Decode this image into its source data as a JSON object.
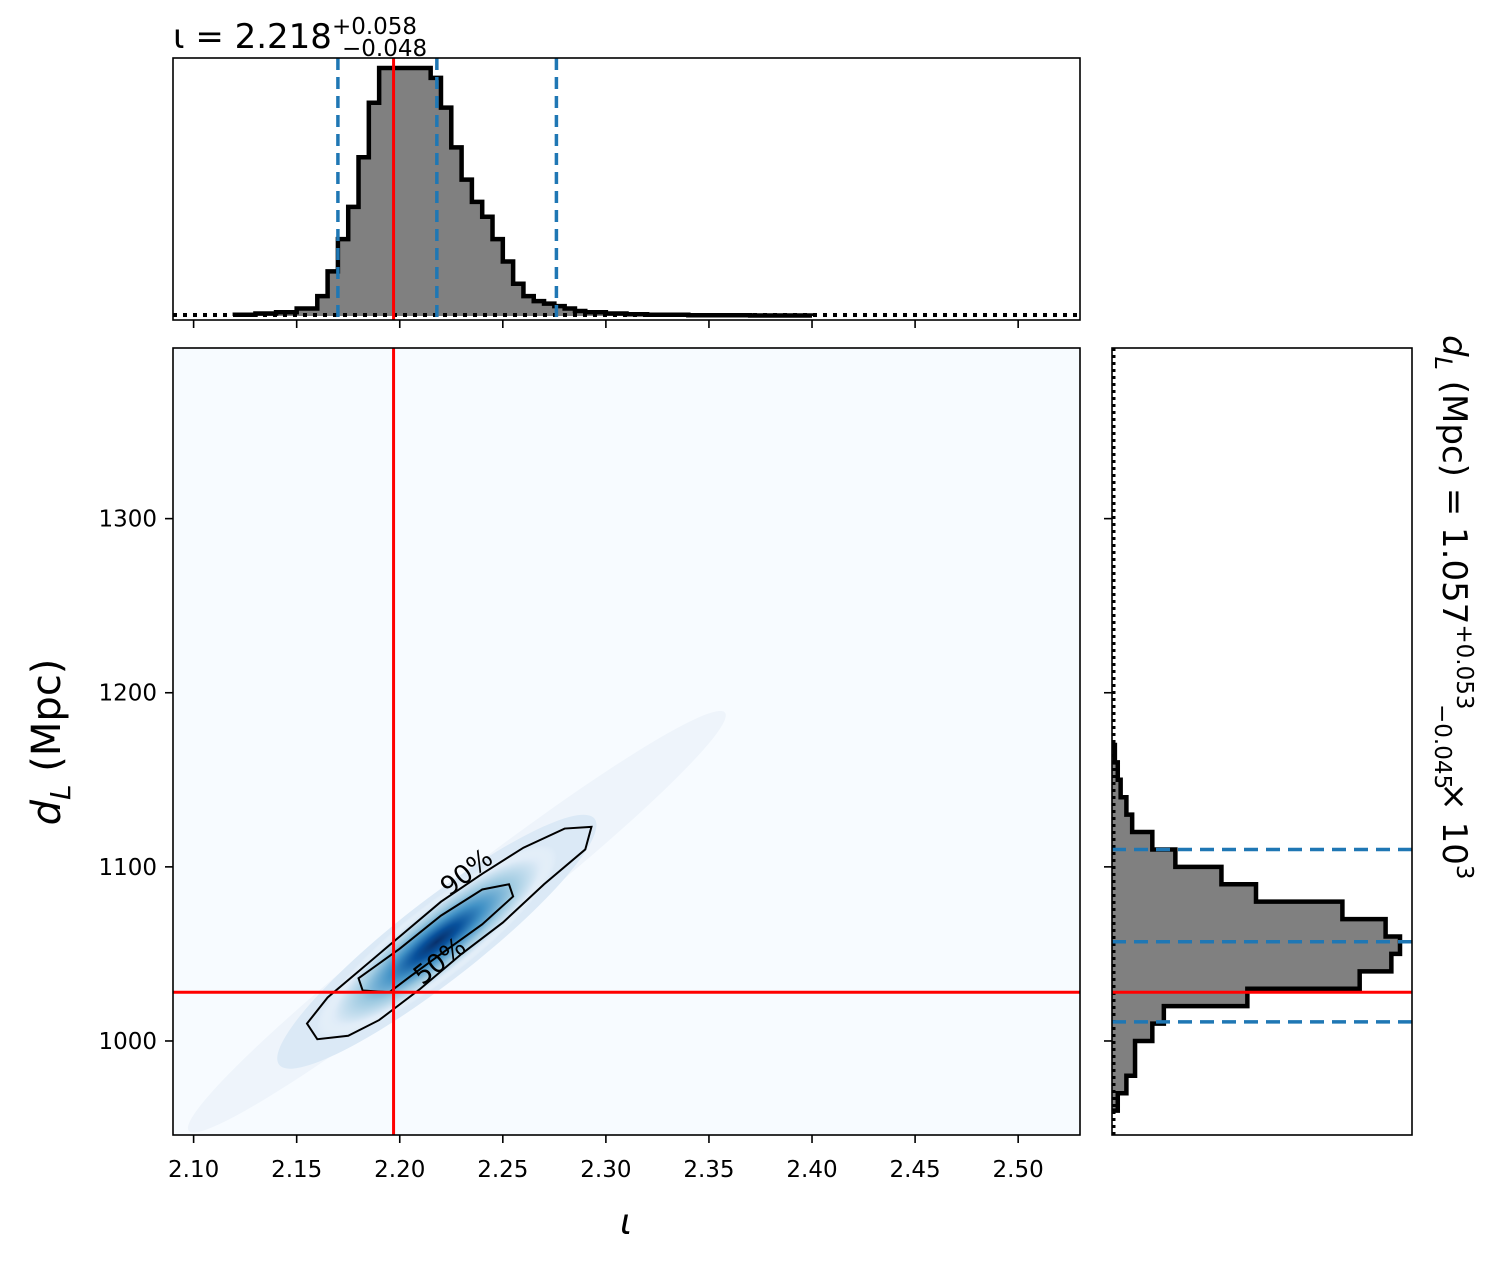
{
  "chart_data": [
    {
      "type": "histogram",
      "panel": "top-marginal",
      "parameter": "iota",
      "title": {
        "base": "ι = 2.218",
        "sup": "+0.058",
        "sub": "−0.048"
      },
      "xlim": [
        2.09,
        2.53
      ],
      "xticks": [
        2.1,
        2.15,
        2.2,
        2.25,
        2.3,
        2.35,
        2.4,
        2.45,
        2.5
      ],
      "bin_edges": [
        2.12,
        2.13,
        2.14,
        2.15,
        2.16,
        2.165,
        2.17,
        2.175,
        2.18,
        2.185,
        2.19,
        2.195,
        2.2,
        2.205,
        2.21,
        2.215,
        2.22,
        2.225,
        2.23,
        2.235,
        2.24,
        2.245,
        2.25,
        2.255,
        2.26,
        2.265,
        2.27,
        2.275,
        2.28,
        2.285,
        2.29,
        2.295,
        2.3,
        2.31,
        2.32,
        2.34,
        2.37,
        2.4
      ],
      "density": [
        0.005,
        0.01,
        0.015,
        0.03,
        0.08,
        0.18,
        0.31,
        0.44,
        0.64,
        0.86,
        1.0,
        1.0,
        1.0,
        1.0,
        1.0,
        0.96,
        0.84,
        0.68,
        0.55,
        0.46,
        0.4,
        0.31,
        0.22,
        0.13,
        0.08,
        0.06,
        0.05,
        0.04,
        0.03,
        0.02,
        0.015,
        0.015,
        0.01,
        0.007,
        0.005,
        0.003,
        0.002
      ],
      "lines": {
        "truth": 2.197,
        "median": 2.218,
        "lower": 2.17,
        "upper": 2.276
      },
      "prior": "dotted near zero"
    },
    {
      "type": "heatmap",
      "panel": "joint",
      "x_param": "iota",
      "y_param": "d_L",
      "xlabel": "ι",
      "ylabel": "d",
      "ylabel_sub": "L",
      "ylabel_unit": " (Mpc)",
      "xlim": [
        2.09,
        2.53
      ],
      "ylim": [
        946,
        1398
      ],
      "xticks": [
        2.1,
        2.15,
        2.2,
        2.25,
        2.3,
        2.35,
        2.4,
        2.45,
        2.5
      ],
      "yticks": [
        1000,
        1100,
        1200,
        1300
      ],
      "colormap": "Blues",
      "density_center": [
        2.218,
        1057
      ],
      "contours": [
        {
          "label": "90%",
          "points": [
            [
              2.16,
              1001
            ],
            [
              2.155,
              1010
            ],
            [
              2.165,
              1025
            ],
            [
              2.18,
              1040
            ],
            [
              2.2,
              1060
            ],
            [
              2.22,
              1080
            ],
            [
              2.24,
              1096
            ],
            [
              2.26,
              1111
            ],
            [
              2.28,
              1122
            ],
            [
              2.293,
              1123
            ],
            [
              2.29,
              1110
            ],
            [
              2.27,
              1090
            ],
            [
              2.25,
              1068
            ],
            [
              2.23,
              1050
            ],
            [
              2.21,
              1030
            ],
            [
              2.19,
              1012
            ],
            [
              2.175,
              1003
            ]
          ]
        },
        {
          "label": "50%",
          "points": [
            [
              2.182,
              1029
            ],
            [
              2.18,
              1036
            ],
            [
              2.2,
              1053
            ],
            [
              2.22,
              1072
            ],
            [
              2.24,
              1087
            ],
            [
              2.253,
              1090
            ],
            [
              2.255,
              1083
            ],
            [
              2.24,
              1067
            ],
            [
              2.22,
              1050
            ],
            [
              2.205,
              1037
            ],
            [
              2.195,
              1028
            ]
          ]
        }
      ],
      "truth": {
        "x": 2.197,
        "y": 1028
      }
    },
    {
      "type": "histogram",
      "panel": "right-marginal",
      "orientation": "horizontal",
      "parameter": "d_L",
      "title": {
        "base": "d",
        "base_sub": "L",
        "rest": " (Mpc) = 1.057",
        "sup": "+0.053",
        "sub": "−0.045",
        "tail": " × 10",
        "exp": "3"
      },
      "ylim": [
        946,
        1398
      ],
      "bin_edges": [
        960,
        970,
        980,
        990,
        1000,
        1010,
        1020,
        1030,
        1040,
        1050,
        1060,
        1070,
        1080,
        1090,
        1100,
        1110,
        1120,
        1130,
        1140,
        1150,
        1160,
        1170
      ],
      "density": [
        0.02,
        0.05,
        0.08,
        0.08,
        0.14,
        0.18,
        0.47,
        0.86,
        0.97,
        1.0,
        0.95,
        0.8,
        0.5,
        0.38,
        0.22,
        0.14,
        0.07,
        0.05,
        0.03,
        0.02,
        0.01
      ],
      "lines": {
        "truth": 1028,
        "median": 1057,
        "lower": 1011,
        "upper": 1110
      },
      "prior": "dotted near zero"
    }
  ],
  "colors": {
    "hist_fill": "#808080",
    "hist_edge": "#000000",
    "truth": "#ff0000",
    "quantile": "#1f77b4",
    "heat_low": "#f7fbff",
    "heat_high": "#08306b"
  }
}
